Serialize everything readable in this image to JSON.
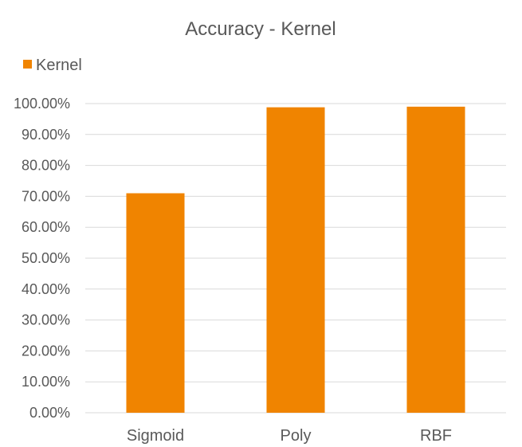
{
  "chart_data": {
    "type": "bar",
    "title": "Accuracy - Kernel",
    "categories": [
      "Sigmoid",
      "Poly",
      "RBF"
    ],
    "series": [
      {
        "name": "Kernel",
        "values": [
          71.0,
          98.8,
          99.0
        ],
        "color": "#F08400"
      }
    ],
    "ylim": [
      0,
      100
    ],
    "yticks": [
      0,
      10,
      20,
      30,
      40,
      50,
      60,
      70,
      80,
      90,
      100
    ],
    "ytick_labels": [
      "0.00%",
      "10.00%",
      "20.00%",
      "30.00%",
      "40.00%",
      "50.00%",
      "60.00%",
      "70.00%",
      "80.00%",
      "90.00%",
      "100.00%"
    ],
    "grid": true,
    "legend_position": "top-left",
    "gridline_color": "#D9D9D9",
    "axis_line_color": "#D9D9D9"
  }
}
